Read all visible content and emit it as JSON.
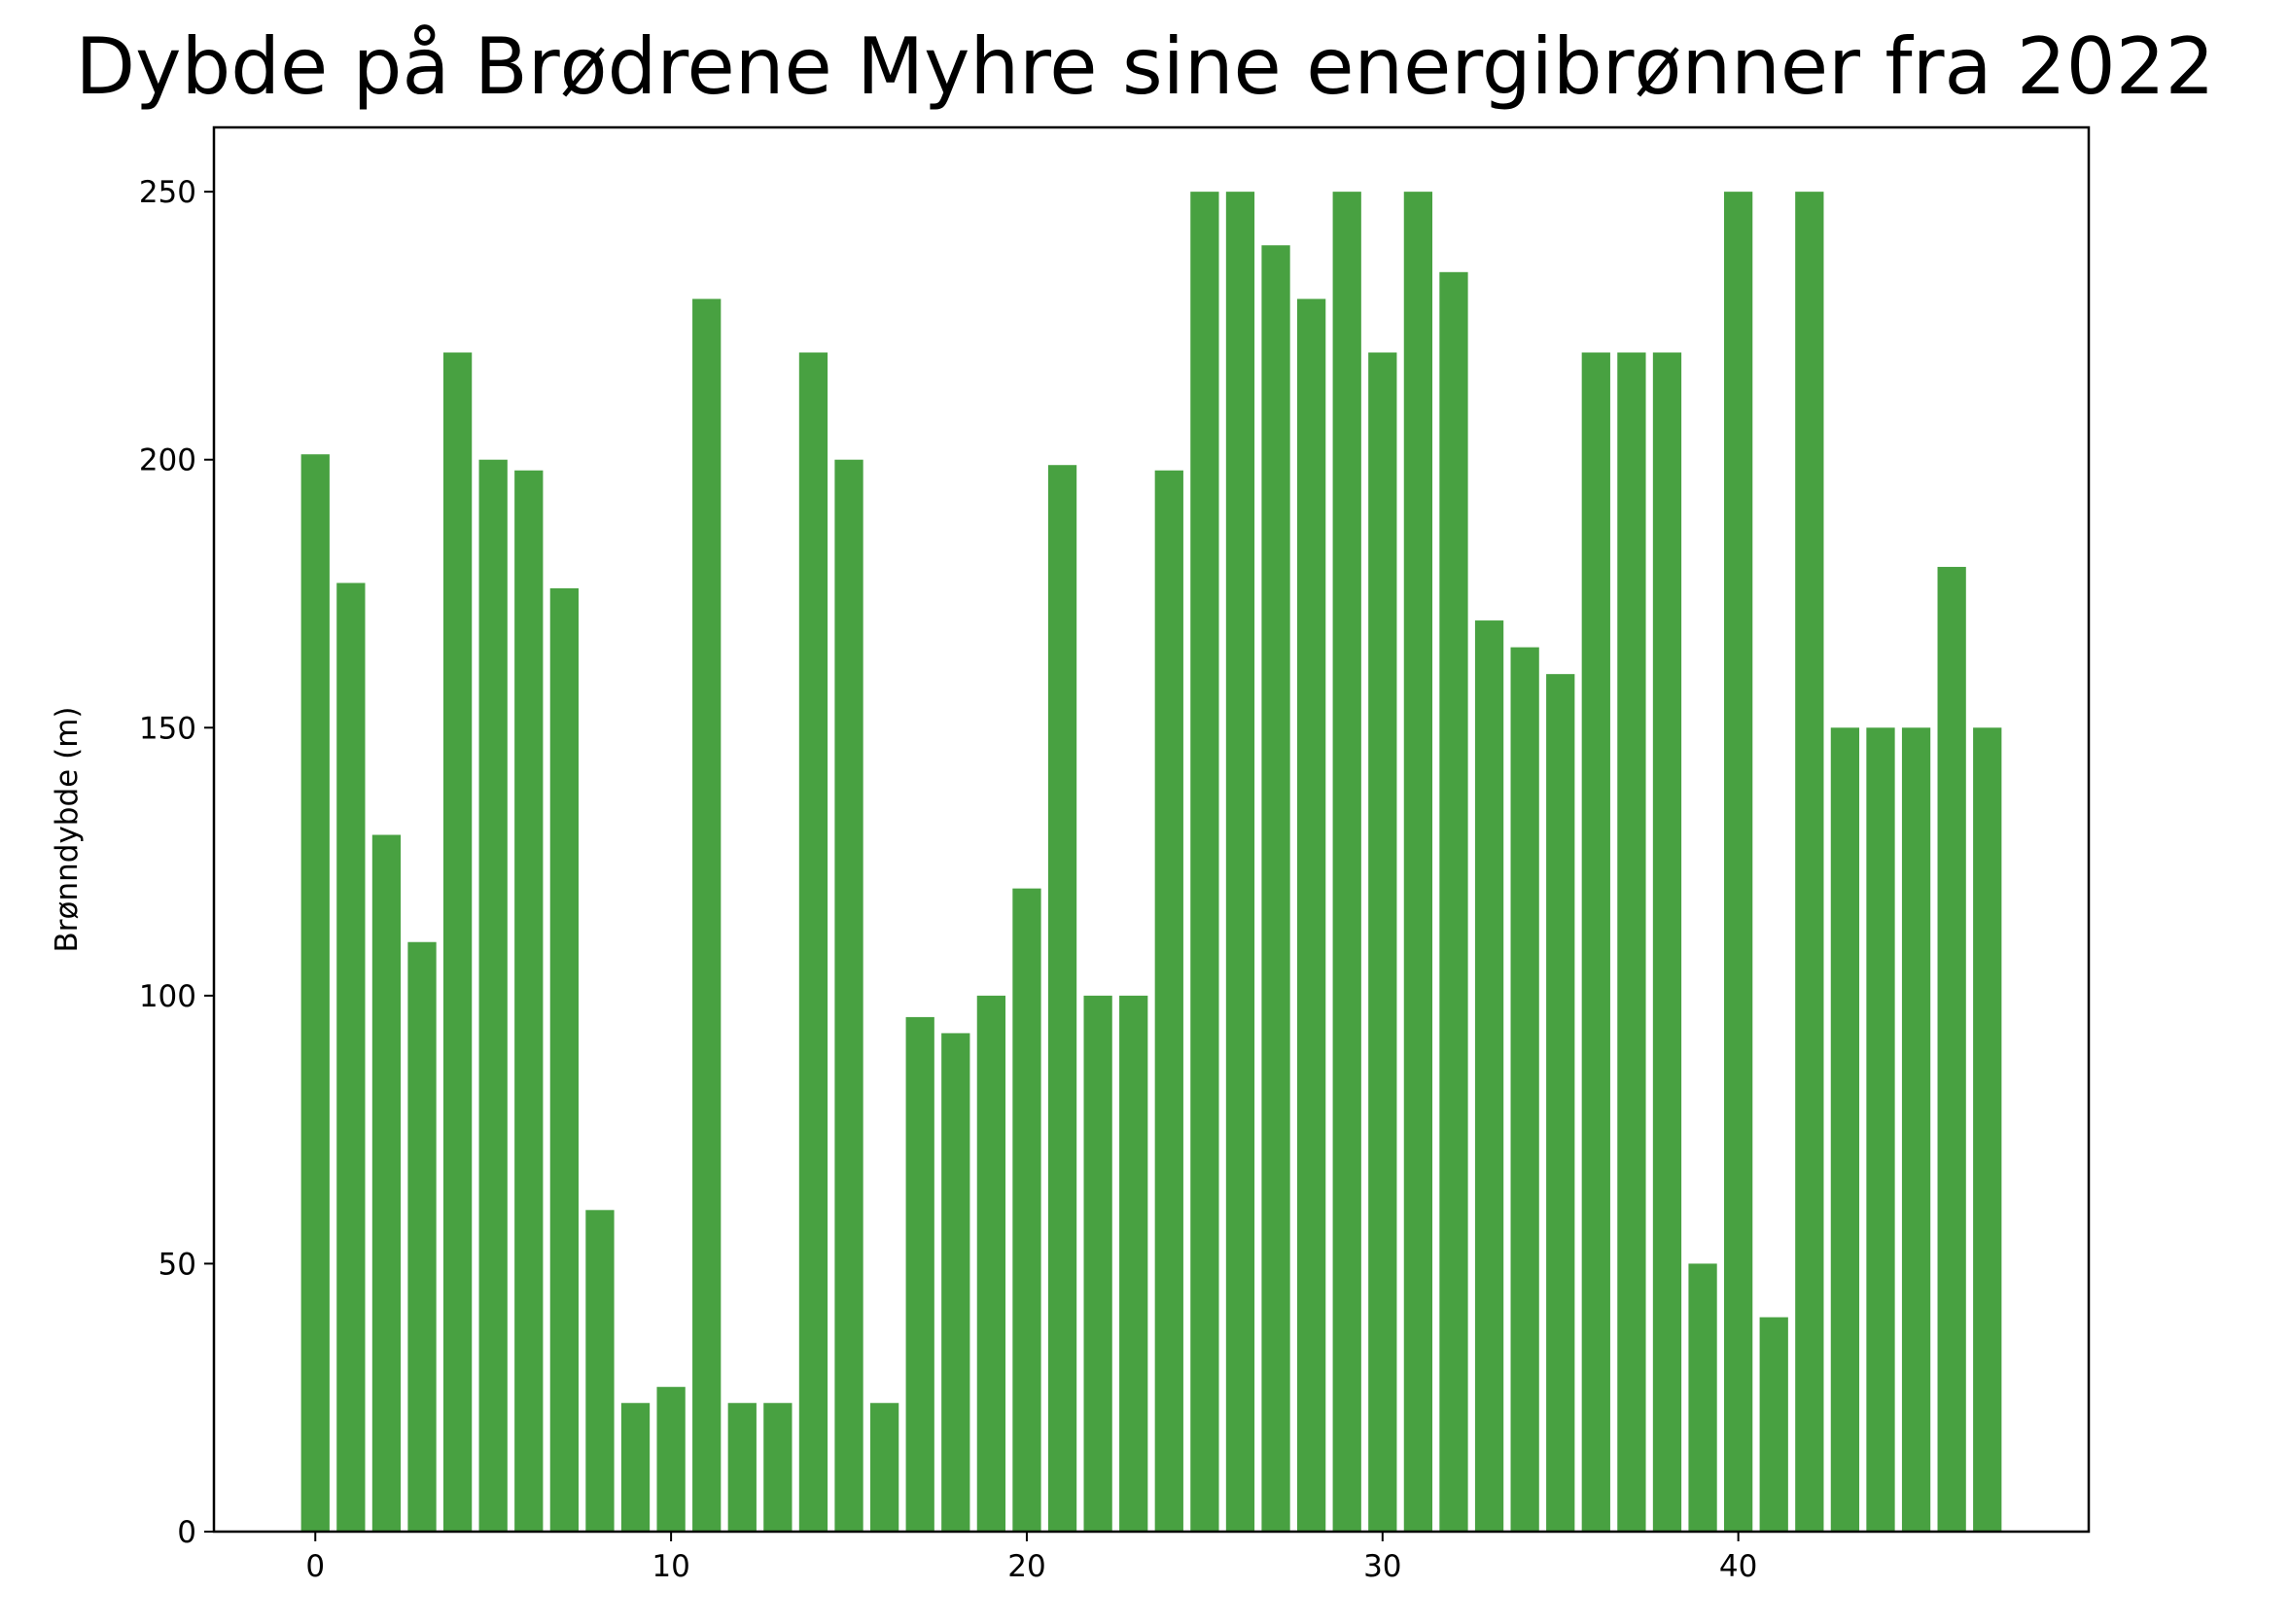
{
  "chart_data": {
    "type": "bar",
    "title": "Dybde på Brødrene Myhre sine energibrønner fra 2022",
    "xlabel": "",
    "ylabel": "Brønndybde (m)",
    "x": [
      0,
      1,
      2,
      3,
      4,
      5,
      6,
      7,
      8,
      9,
      10,
      11,
      12,
      13,
      14,
      15,
      16,
      17,
      18,
      19,
      20,
      21,
      22,
      23,
      24,
      25,
      26,
      27,
      28,
      29,
      30,
      31,
      32,
      33,
      34,
      35,
      36,
      37,
      38,
      39,
      40,
      41,
      42,
      43,
      44,
      45,
      46,
      47
    ],
    "values": [
      201,
      177,
      130,
      110,
      220,
      200,
      198,
      176,
      60,
      24,
      27,
      230,
      24,
      24,
      220,
      200,
      24,
      96,
      93,
      100,
      120,
      199,
      100,
      100,
      198,
      250,
      250,
      240,
      230,
      250,
      220,
      250,
      235,
      170,
      165,
      160,
      220,
      220,
      220,
      50,
      250,
      40,
      250,
      150,
      150,
      150,
      180,
      150
    ],
    "xlim": [
      -2.85,
      49.85
    ],
    "ylim": [
      0,
      262
    ],
    "xticks": [
      "0",
      "10",
      "20",
      "30",
      "40"
    ],
    "yticks": [
      "0",
      "50",
      "100",
      "150",
      "200",
      "250"
    ],
    "bar_color": "#48a141",
    "grid": false
  }
}
